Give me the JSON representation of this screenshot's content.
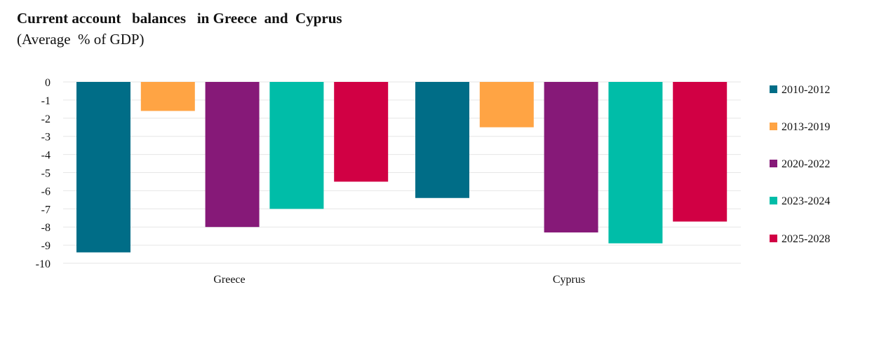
{
  "chart_data": {
    "type": "bar",
    "title": "Current account   balances   in Greece  and  Cyprus",
    "subtitle": "(Average  % of GDP)",
    "categories": [
      "Greece",
      "Cyprus"
    ],
    "series": [
      {
        "name": "2010-2012",
        "color": "#006d87",
        "values": [
          -9.4,
          -6.4
        ]
      },
      {
        "name": "2013-2019",
        "color": "#ffa444",
        "values": [
          -1.6,
          -2.5
        ]
      },
      {
        "name": "2020-2022",
        "color": "#861978",
        "values": [
          -8.0,
          -8.3
        ]
      },
      {
        "name": "2023-2024",
        "color": "#00bda8",
        "values": [
          -7.0,
          -8.9
        ]
      },
      {
        "name": "2025-2028",
        "color": "#d10044",
        "values": [
          -5.5,
          -7.7
        ]
      }
    ],
    "ylim": [
      -10,
      0
    ],
    "yticks": [
      "0",
      "-1",
      "-2",
      "-3",
      "-4",
      "-5",
      "-6",
      "-7",
      "-8",
      "-9",
      "-10"
    ],
    "grid": true,
    "legend_position": "right"
  }
}
